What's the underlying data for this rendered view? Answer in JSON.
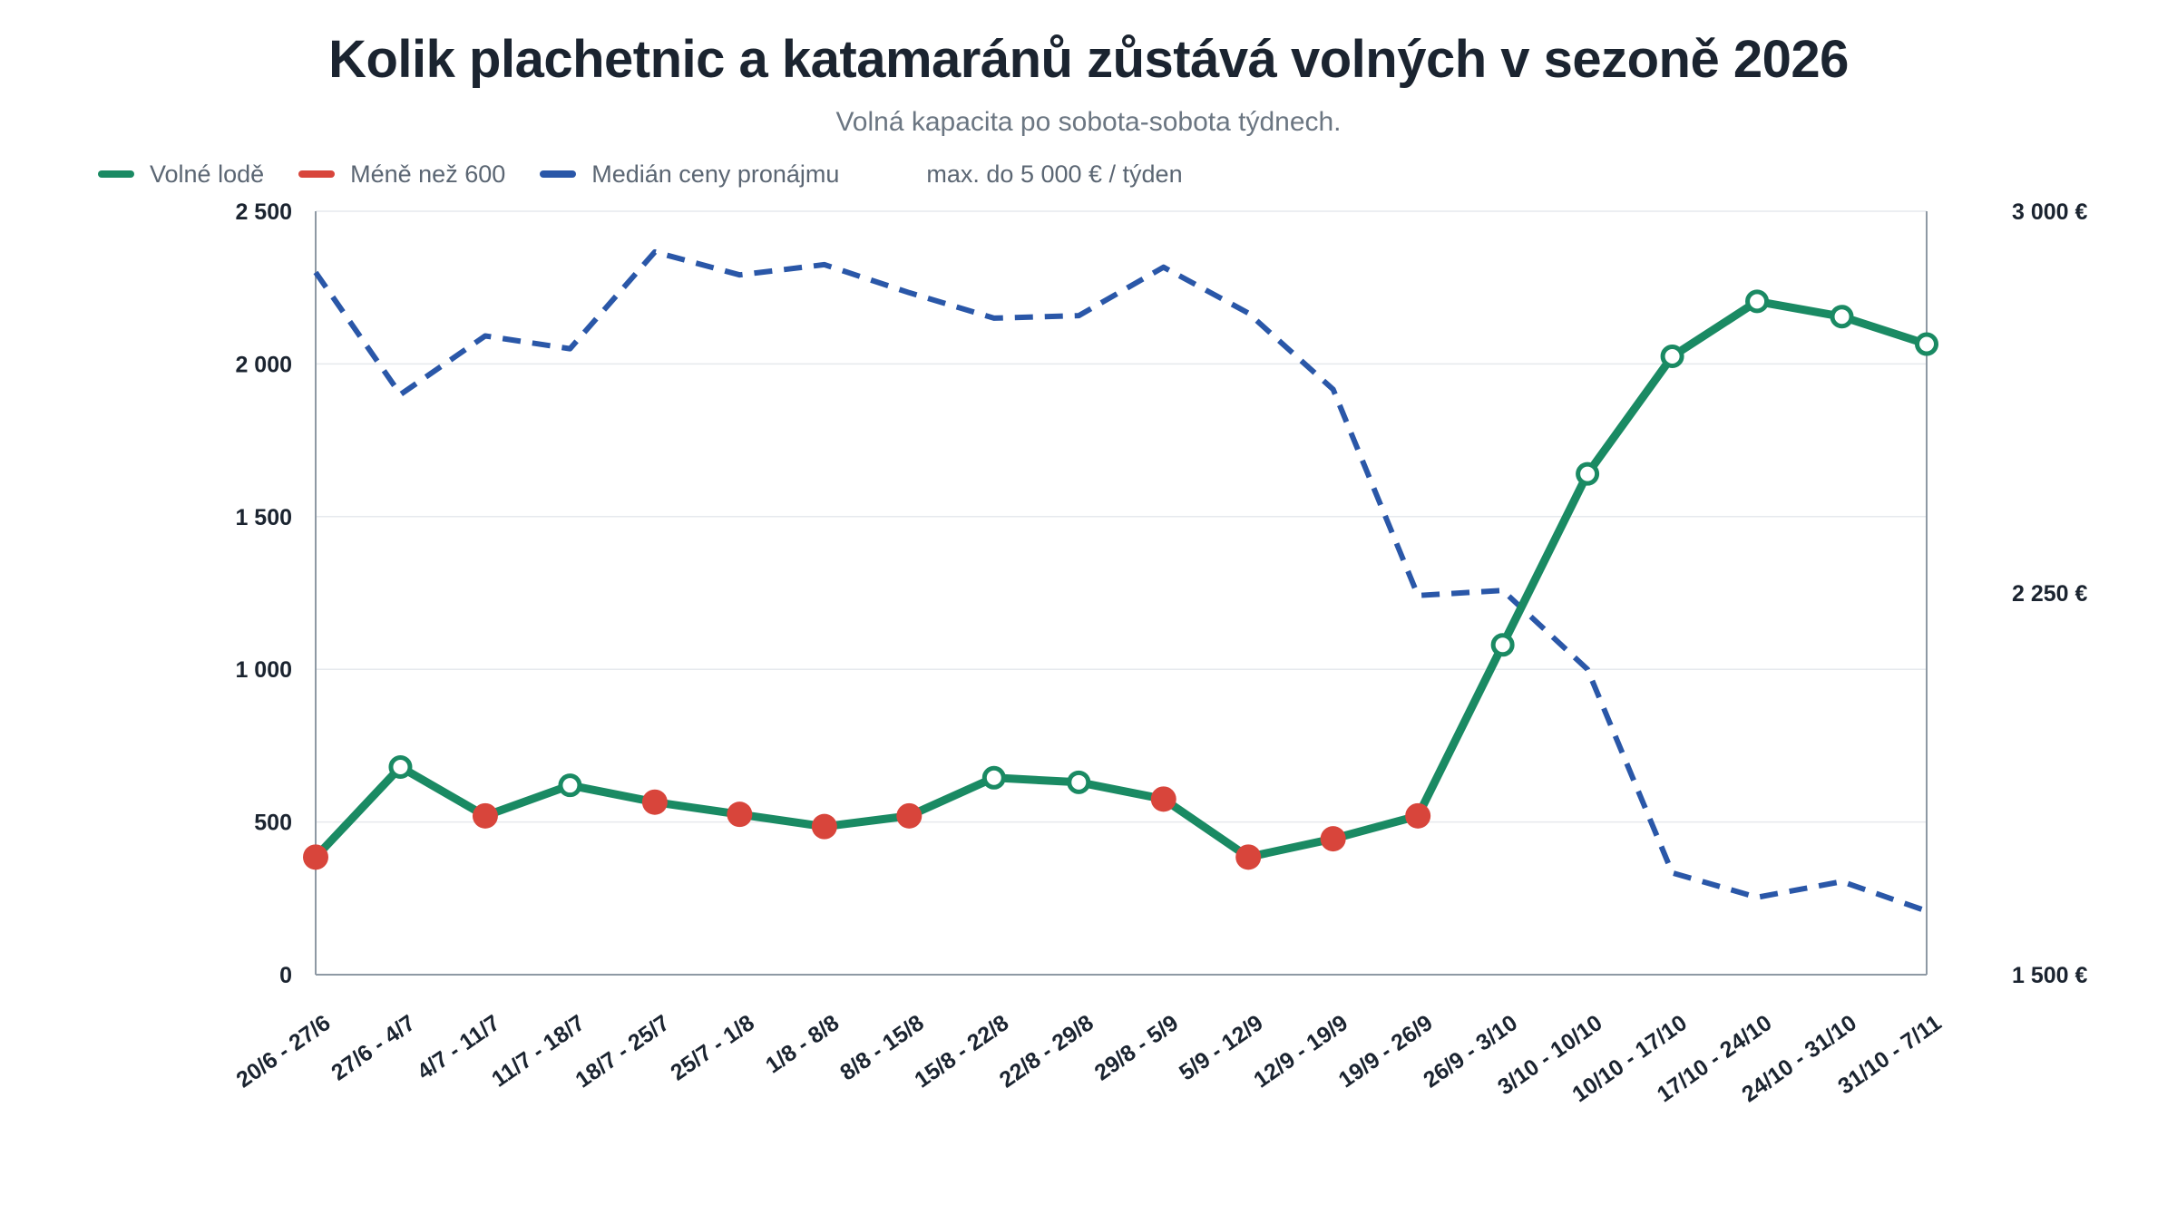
{
  "title": "Kolik plachetnic a katamaránů zůstává volných v sezoně 2026",
  "subtitle": "Volná kapacita po sobota-sobota týdnech.",
  "legend": {
    "items": [
      {
        "label": "Volné lodě",
        "color": "#1a8a63"
      },
      {
        "label": "Méně než 600",
        "color": "#d8453b"
      },
      {
        "label": "Medián ceny pronájmu",
        "color": "#2a57a8"
      }
    ],
    "note": "max. do 5 000 € / týden"
  },
  "chart_data": {
    "type": "line",
    "title": "Kolik plachetnic a katamaránů zůstává volných v sezoně 2026",
    "subtitle": "Volná kapacita po sobota-sobota týdnech.",
    "categories": [
      "20/6 - 27/6",
      "27/6 - 4/7",
      "4/7 - 11/7",
      "11/7 - 18/7",
      "18/7 - 25/7",
      "25/7 - 1/8",
      "1/8 - 8/8",
      "8/8 - 15/8",
      "15/8 - 22/8",
      "22/8 - 29/8",
      "29/8 - 5/9",
      "5/9 - 12/9",
      "12/9 - 19/9",
      "19/9 - 26/9",
      "26/9 - 3/10",
      "3/10 - 10/10",
      "10/10 - 17/10",
      "17/10 - 24/10",
      "24/10 - 31/10",
      "31/10 - 7/11"
    ],
    "series": [
      {
        "name": "Volné lodě",
        "axis": "left",
        "style": "solid",
        "color": "#1a8a63",
        "values": [
          385,
          680,
          520,
          620,
          565,
          525,
          485,
          520,
          645,
          630,
          575,
          385,
          445,
          520,
          1080,
          1640,
          2025,
          2205,
          2155,
          2065
        ]
      },
      {
        "name": "Medián ceny pronájmu",
        "axis": "right",
        "style": "dashed",
        "color": "#2a57a8",
        "values": [
          2880,
          2640,
          2755,
          2730,
          2920,
          2875,
          2895,
          2840,
          2790,
          2795,
          2890,
          2800,
          2650,
          2245,
          2255,
          2100,
          1700,
          1652,
          1683,
          1625
        ]
      }
    ],
    "highlight": {
      "name": "Méně než 600",
      "threshold": 600,
      "color": "#d8453b"
    },
    "left_axis": {
      "ylim": [
        0,
        2500
      ],
      "ticks": [
        "0",
        "500",
        "1 000",
        "1 500",
        "2 000",
        "2 500"
      ]
    },
    "right_axis": {
      "ylim": [
        1500,
        3000
      ],
      "ticks": [
        "1 500 €",
        "2 250 €",
        "3 000 €"
      ]
    },
    "grid": true,
    "legend_position": "top-left"
  }
}
